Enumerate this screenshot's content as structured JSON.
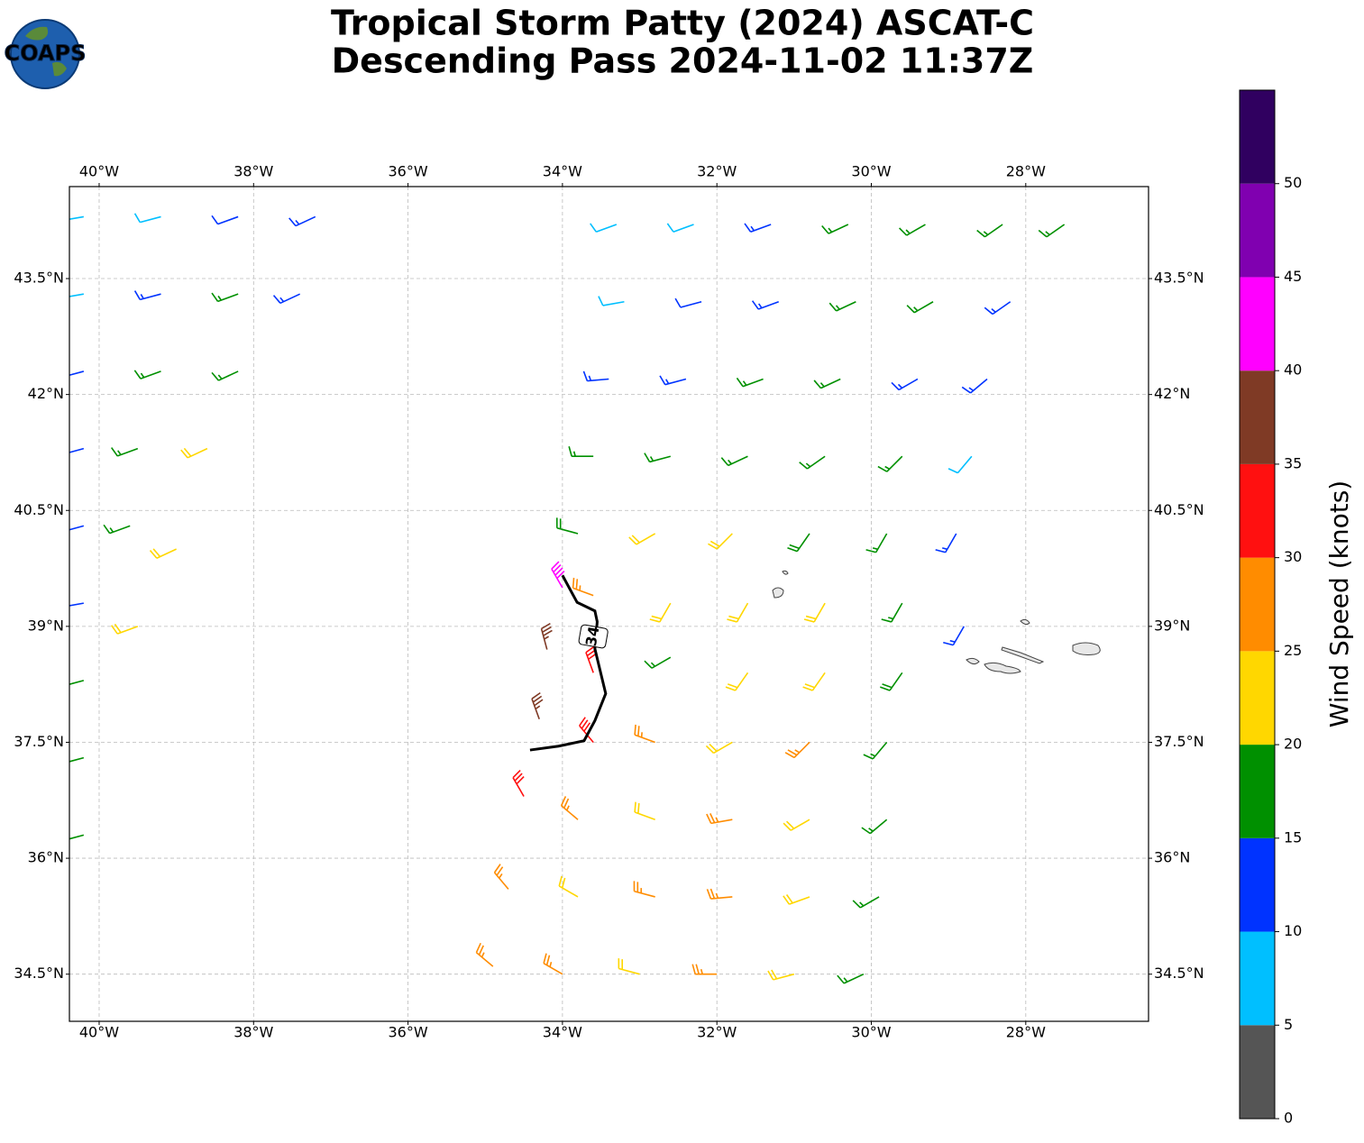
{
  "chart_data": {
    "type": "wind_barbs",
    "logo": "COAPS",
    "title": [
      "Tropical Storm Patty (2024) ASCAT-C",
      "Descending Pass 2024-11-02 11:37Z"
    ],
    "xlim": [
      -40.385,
      -26.41
    ],
    "ylim": [
      33.89,
      44.69
    ],
    "xticks": [
      {
        "value": -40,
        "label": "40°W"
      },
      {
        "value": -38,
        "label": "38°W"
      },
      {
        "value": -36,
        "label": "36°W"
      },
      {
        "value": -34,
        "label": "34°W"
      },
      {
        "value": -32,
        "label": "32°W"
      },
      {
        "value": -30,
        "label": "30°W"
      },
      {
        "value": -28,
        "label": "28°W"
      }
    ],
    "yticks": [
      {
        "value": 34.5,
        "label": "34.5°N"
      },
      {
        "value": 36,
        "label": "36°N"
      },
      {
        "value": 37.5,
        "label": "37.5°N"
      },
      {
        "value": 39,
        "label": "39°N"
      },
      {
        "value": 40.5,
        "label": "40.5°N"
      },
      {
        "value": 42,
        "label": "42°N"
      },
      {
        "value": 43.5,
        "label": "43.5°N"
      }
    ],
    "grid": true,
    "colorbar": {
      "label": "Wind Speed (knots)",
      "lim": [
        0,
        55
      ],
      "bounds": [
        0,
        5,
        10,
        15,
        20,
        25,
        30,
        35,
        40,
        45,
        50,
        55
      ],
      "colors": [
        "#555555",
        "#00bfff",
        "#0033ff",
        "#009000",
        "#ffd700",
        "#ff8c00",
        "#ff1010",
        "#7f3a25",
        "#ff00ff",
        "#8000b0",
        "#300060"
      ],
      "ticks": [
        0,
        5,
        10,
        15,
        20,
        25,
        30,
        35,
        40,
        45,
        50
      ]
    },
    "barbs": {
      "lon": [
        -40.2,
        -39.2,
        -38.2,
        -37.2,
        -40.2,
        -39.2,
        -38.2,
        -37.4,
        -40.2,
        -39.2,
        -38.2,
        -40.2,
        -39.5,
        -38.6,
        -40.2,
        -39.6,
        -39.0,
        -40.2,
        -39.5,
        -40.2,
        -40.2,
        -40.2,
        -33.3,
        -32.3,
        -31.3,
        -30.3,
        -29.3,
        -28.3,
        -27.5,
        -33.2,
        -32.2,
        -31.2,
        -30.2,
        -29.2,
        -28.2,
        -33.4,
        -32.4,
        -31.4,
        -30.4,
        -29.4,
        -28.5,
        -33.6,
        -32.6,
        -31.6,
        -30.6,
        -29.6,
        -28.7,
        -33.8,
        -32.8,
        -31.8,
        -30.8,
        -29.8,
        -28.9,
        -34.0,
        -33.6,
        -32.6,
        -31.6,
        -30.6,
        -29.6,
        -28.8,
        -34.2,
        -33.6,
        -32.6,
        -31.6,
        -30.6,
        -29.6,
        -34.3,
        -33.6,
        -32.8,
        -31.8,
        -30.8,
        -29.8,
        -34.5,
        -33.8,
        -32.8,
        -31.8,
        -30.8,
        -29.8,
        -34.7,
        -33.8,
        -32.8,
        -31.8,
        -30.8,
        -29.9,
        -34.9,
        -34.0,
        -33.0,
        -32.0,
        -31.0,
        -30.1
      ],
      "lat": [
        44.3,
        44.3,
        44.3,
        44.3,
        43.3,
        43.3,
        43.3,
        43.3,
        42.3,
        42.3,
        42.3,
        41.3,
        41.3,
        41.3,
        40.3,
        40.3,
        40.0,
        39.3,
        39.0,
        38.3,
        37.3,
        36.3,
        44.2,
        44.2,
        44.2,
        44.2,
        44.2,
        44.2,
        44.2,
        43.2,
        43.2,
        43.2,
        43.2,
        43.2,
        43.2,
        42.2,
        42.2,
        42.2,
        42.2,
        42.2,
        42.2,
        41.2,
        41.2,
        41.2,
        41.2,
        41.2,
        41.2,
        40.2,
        40.2,
        40.2,
        40.2,
        40.2,
        40.2,
        39.5,
        39.4,
        39.3,
        39.3,
        39.3,
        39.3,
        39.0,
        38.7,
        38.4,
        38.6,
        38.4,
        38.4,
        38.4,
        37.8,
        37.5,
        37.5,
        37.5,
        37.5,
        37.5,
        36.8,
        36.5,
        36.5,
        36.5,
        36.5,
        36.5,
        35.6,
        35.5,
        35.5,
        35.5,
        35.5,
        35.5,
        34.6,
        34.5,
        34.5,
        34.5,
        34.5,
        34.5
      ],
      "speed": [
        8,
        9,
        12,
        13,
        9,
        13,
        16,
        13,
        12,
        17,
        17,
        13,
        17,
        22,
        13,
        17,
        22,
        14,
        22,
        17,
        17,
        18,
        8,
        8,
        13,
        17,
        17,
        17,
        17,
        8,
        12,
        13,
        17,
        17,
        13,
        13,
        13,
        17,
        17,
        13,
        13,
        17,
        17,
        17,
        17,
        17,
        8,
        18,
        22,
        22,
        18,
        17,
        13,
        42,
        27,
        22,
        22,
        22,
        17,
        13,
        37,
        32,
        17,
        22,
        22,
        18,
        37,
        32,
        27,
        22,
        27,
        17,
        32,
        27,
        22,
        27,
        22,
        17,
        27,
        22,
        27,
        27,
        22,
        17,
        27,
        27,
        22,
        27,
        22,
        17
      ],
      "direction": [
        260,
        255,
        250,
        245,
        260,
        255,
        250,
        245,
        255,
        250,
        245,
        255,
        250,
        245,
        255,
        250,
        245,
        260,
        250,
        255,
        255,
        255,
        250,
        250,
        250,
        245,
        240,
        235,
        235,
        260,
        255,
        250,
        245,
        240,
        235,
        265,
        255,
        250,
        245,
        240,
        230,
        270,
        255,
        245,
        235,
        225,
        220,
        285,
        240,
        225,
        215,
        210,
        210,
        330,
        290,
        210,
        210,
        210,
        210,
        210,
        345,
        340,
        240,
        215,
        215,
        215,
        340,
        320,
        290,
        240,
        225,
        220,
        330,
        310,
        290,
        260,
        240,
        230,
        320,
        300,
        285,
        265,
        250,
        240,
        310,
        300,
        285,
        270,
        255,
        245
      ]
    },
    "track": {
      "lon": [
        -34.0,
        -33.81,
        -33.58,
        -33.55,
        -33.58,
        -33.44,
        -33.58,
        -33.72,
        -34.05,
        -34.42
      ],
      "lat": [
        39.66,
        39.31,
        39.2,
        39.06,
        38.71,
        38.13,
        37.78,
        37.52,
        37.45,
        37.4
      ],
      "label": "34",
      "label_lon": -33.6,
      "label_lat": 38.87
    }
  }
}
